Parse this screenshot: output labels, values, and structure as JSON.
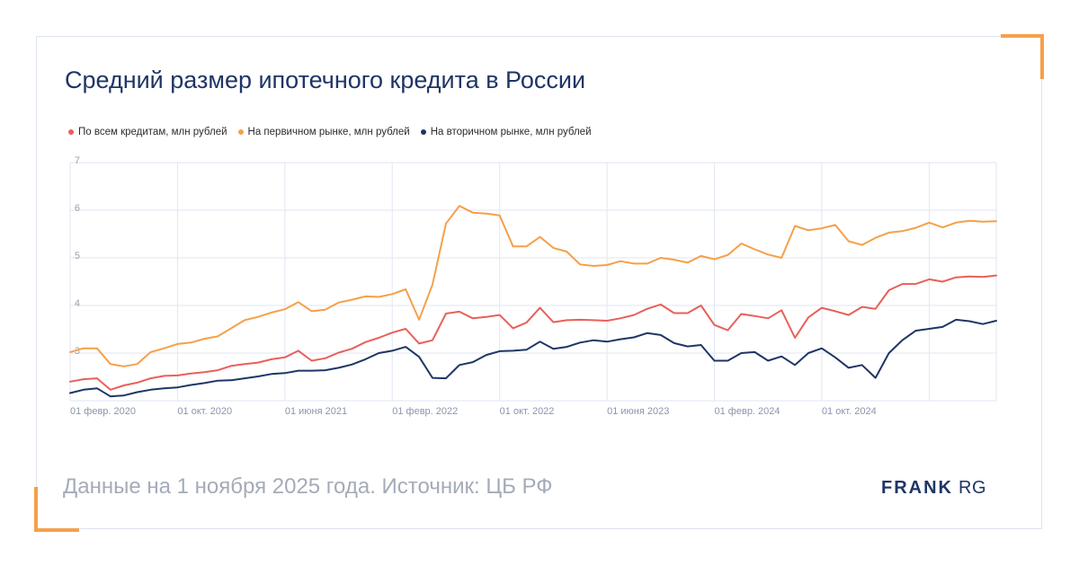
{
  "title": "Средний размер ипотечного кредита в России",
  "footer": "Данные на 1 ноября 2025 года. Источник: ЦБ РФ",
  "logo": {
    "strong": "FRANK",
    "light": "RG"
  },
  "colors": {
    "accent": "#f5a04a",
    "title": "#1f3566",
    "grid": "#e2e6f3"
  },
  "chart_data": {
    "type": "line",
    "ylim": [
      2,
      7
    ],
    "yticks": [
      "7",
      "6",
      "5",
      "4",
      "3"
    ],
    "x_tick_labels": [
      "01 февр. 2020",
      "01 окт. 2020",
      "01 июня 2021",
      "01 февр. 2022",
      "01 окт. 2022",
      "01 июня 2023",
      "01 февр. 2024",
      "01 окт. 2024"
    ],
    "x_tick_index": [
      0,
      8,
      16,
      24,
      32,
      40,
      48,
      56
    ],
    "grid": true,
    "legend_position": "top-left",
    "series": [
      {
        "name": "По всем кредитам, млн рублей",
        "color": "#e8605a",
        "values": [
          2.4,
          2.45,
          2.47,
          2.23,
          2.32,
          2.38,
          2.47,
          2.52,
          2.53,
          2.57,
          2.6,
          2.64,
          2.73,
          2.77,
          2.8,
          2.87,
          2.91,
          3.05,
          2.84,
          2.89,
          3.01,
          3.09,
          3.23,
          3.32,
          3.43,
          3.51,
          3.2,
          3.27,
          3.83,
          3.87,
          3.73,
          3.76,
          3.8,
          3.52,
          3.64,
          3.95,
          3.65,
          3.69,
          3.7,
          3.69,
          3.68,
          3.73,
          3.8,
          3.93,
          4.02,
          3.84,
          3.84,
          4.0,
          3.59,
          3.48,
          3.82,
          3.78,
          3.73,
          3.9,
          3.32,
          3.75,
          3.95,
          3.88,
          3.8,
          3.97,
          3.93,
          4.32,
          4.45,
          4.45,
          4.55,
          4.5,
          4.59,
          4.61,
          4.6,
          4.63
        ]
      },
      {
        "name": "На первичном рынке, млн рублей",
        "color": "#f5a04a",
        "values": [
          3.02,
          3.1,
          3.1,
          2.77,
          2.72,
          2.77,
          3.02,
          3.1,
          3.19,
          3.22,
          3.3,
          3.35,
          3.52,
          3.69,
          3.76,
          3.85,
          3.92,
          4.07,
          3.88,
          3.91,
          4.06,
          4.12,
          4.19,
          4.18,
          4.24,
          4.34,
          3.7,
          4.44,
          5.72,
          6.09,
          5.95,
          5.93,
          5.89,
          5.24,
          5.24,
          5.44,
          5.21,
          5.13,
          4.86,
          4.83,
          4.85,
          4.93,
          4.88,
          4.88,
          5.0,
          4.96,
          4.9,
          5.04,
          4.97,
          5.06,
          5.3,
          5.18,
          5.07,
          5.0,
          5.67,
          5.58,
          5.62,
          5.69,
          5.35,
          5.27,
          5.42,
          5.53,
          5.56,
          5.63,
          5.74,
          5.64,
          5.74,
          5.78,
          5.76,
          5.77
        ]
      },
      {
        "name": "На вторичном рынке, млн рублей",
        "color": "#1f3566",
        "values": [
          2.16,
          2.23,
          2.26,
          2.09,
          2.11,
          2.18,
          2.23,
          2.26,
          2.28,
          2.33,
          2.37,
          2.42,
          2.43,
          2.47,
          2.51,
          2.56,
          2.58,
          2.63,
          2.63,
          2.64,
          2.69,
          2.76,
          2.87,
          3.0,
          3.05,
          3.13,
          2.92,
          2.48,
          2.47,
          2.75,
          2.81,
          2.96,
          3.04,
          3.05,
          3.07,
          3.24,
          3.09,
          3.13,
          3.22,
          3.27,
          3.24,
          3.29,
          3.33,
          3.42,
          3.38,
          3.21,
          3.14,
          3.17,
          2.84,
          2.84,
          3.0,
          3.02,
          2.84,
          2.93,
          2.75,
          3.0,
          3.1,
          2.91,
          2.69,
          2.75,
          2.48,
          3.0,
          3.27,
          3.47,
          3.51,
          3.55,
          3.7,
          3.67,
          3.61,
          3.68
        ]
      }
    ]
  }
}
